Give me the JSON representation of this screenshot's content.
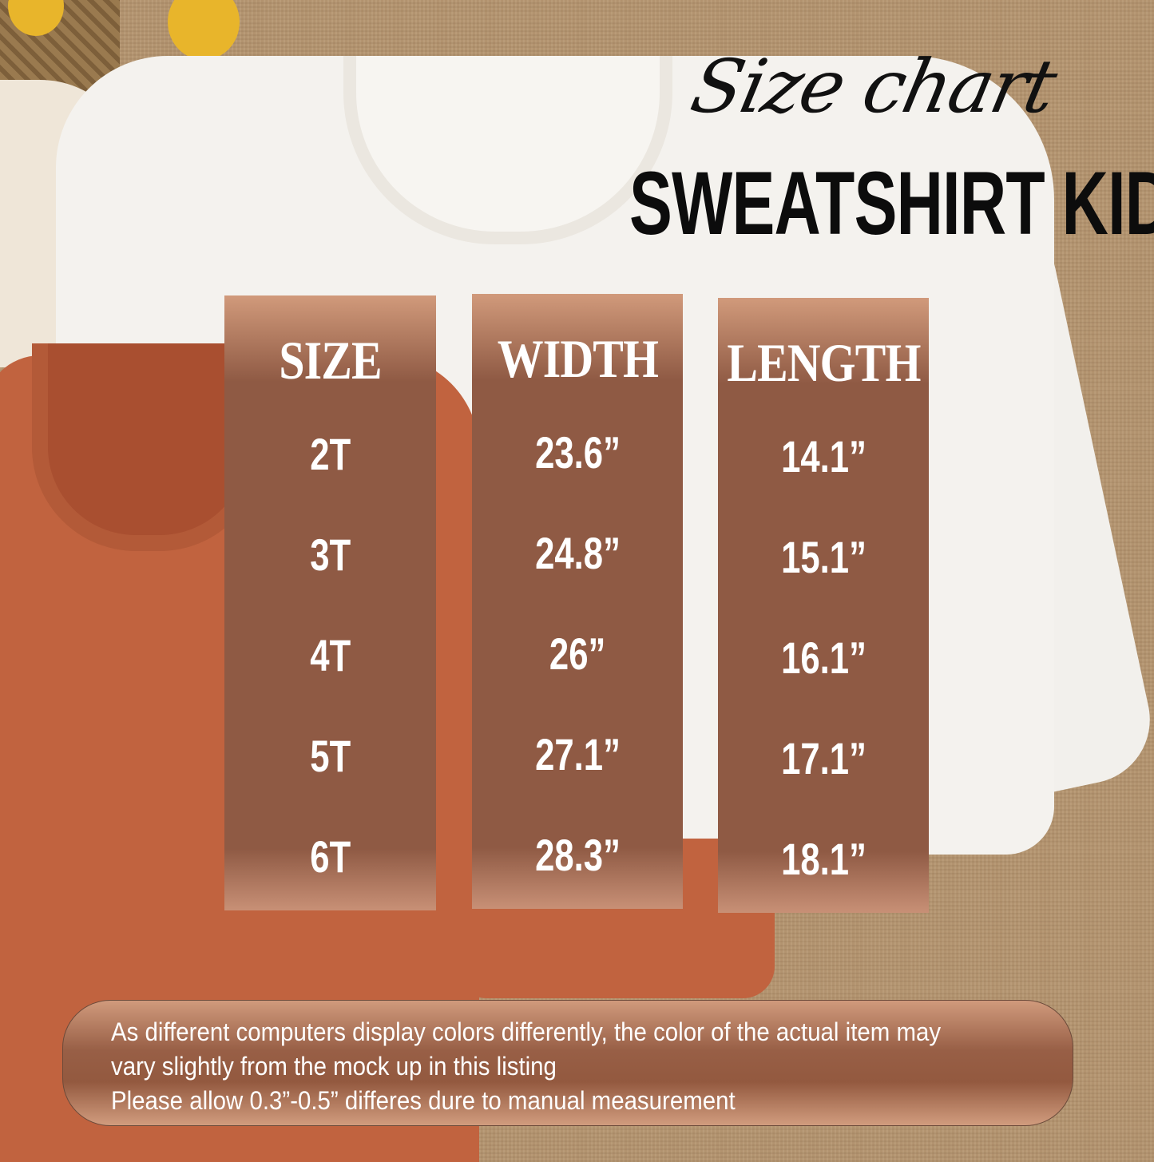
{
  "title": {
    "script": "Size chart",
    "main": "SWEATSHIRT KID"
  },
  "table": {
    "headers": [
      "SIZE",
      "WIDTH",
      "LENGTH"
    ],
    "rows": [
      {
        "size": "2T",
        "width": "23.6”",
        "length": "14.1”"
      },
      {
        "size": "3T",
        "width": "24.8”",
        "length": "15.1”"
      },
      {
        "size": "4T",
        "width": "26”",
        "length": "16.1”"
      },
      {
        "size": "5T",
        "width": "27.1”",
        "length": "17.1”"
      },
      {
        "size": "6T",
        "width": "28.3”",
        "length": "18.1”"
      }
    ]
  },
  "note": {
    "lines": [
      "As different computers display colors differently, the color of the actual item may",
      "vary slightly from the mock up in this listing",
      "Please allow 0.3”-0.5” differes dure to manual measurement"
    ]
  },
  "colors": {
    "column": "#8f5a44",
    "background": "#b2936f",
    "title": "#0c0c0c"
  }
}
